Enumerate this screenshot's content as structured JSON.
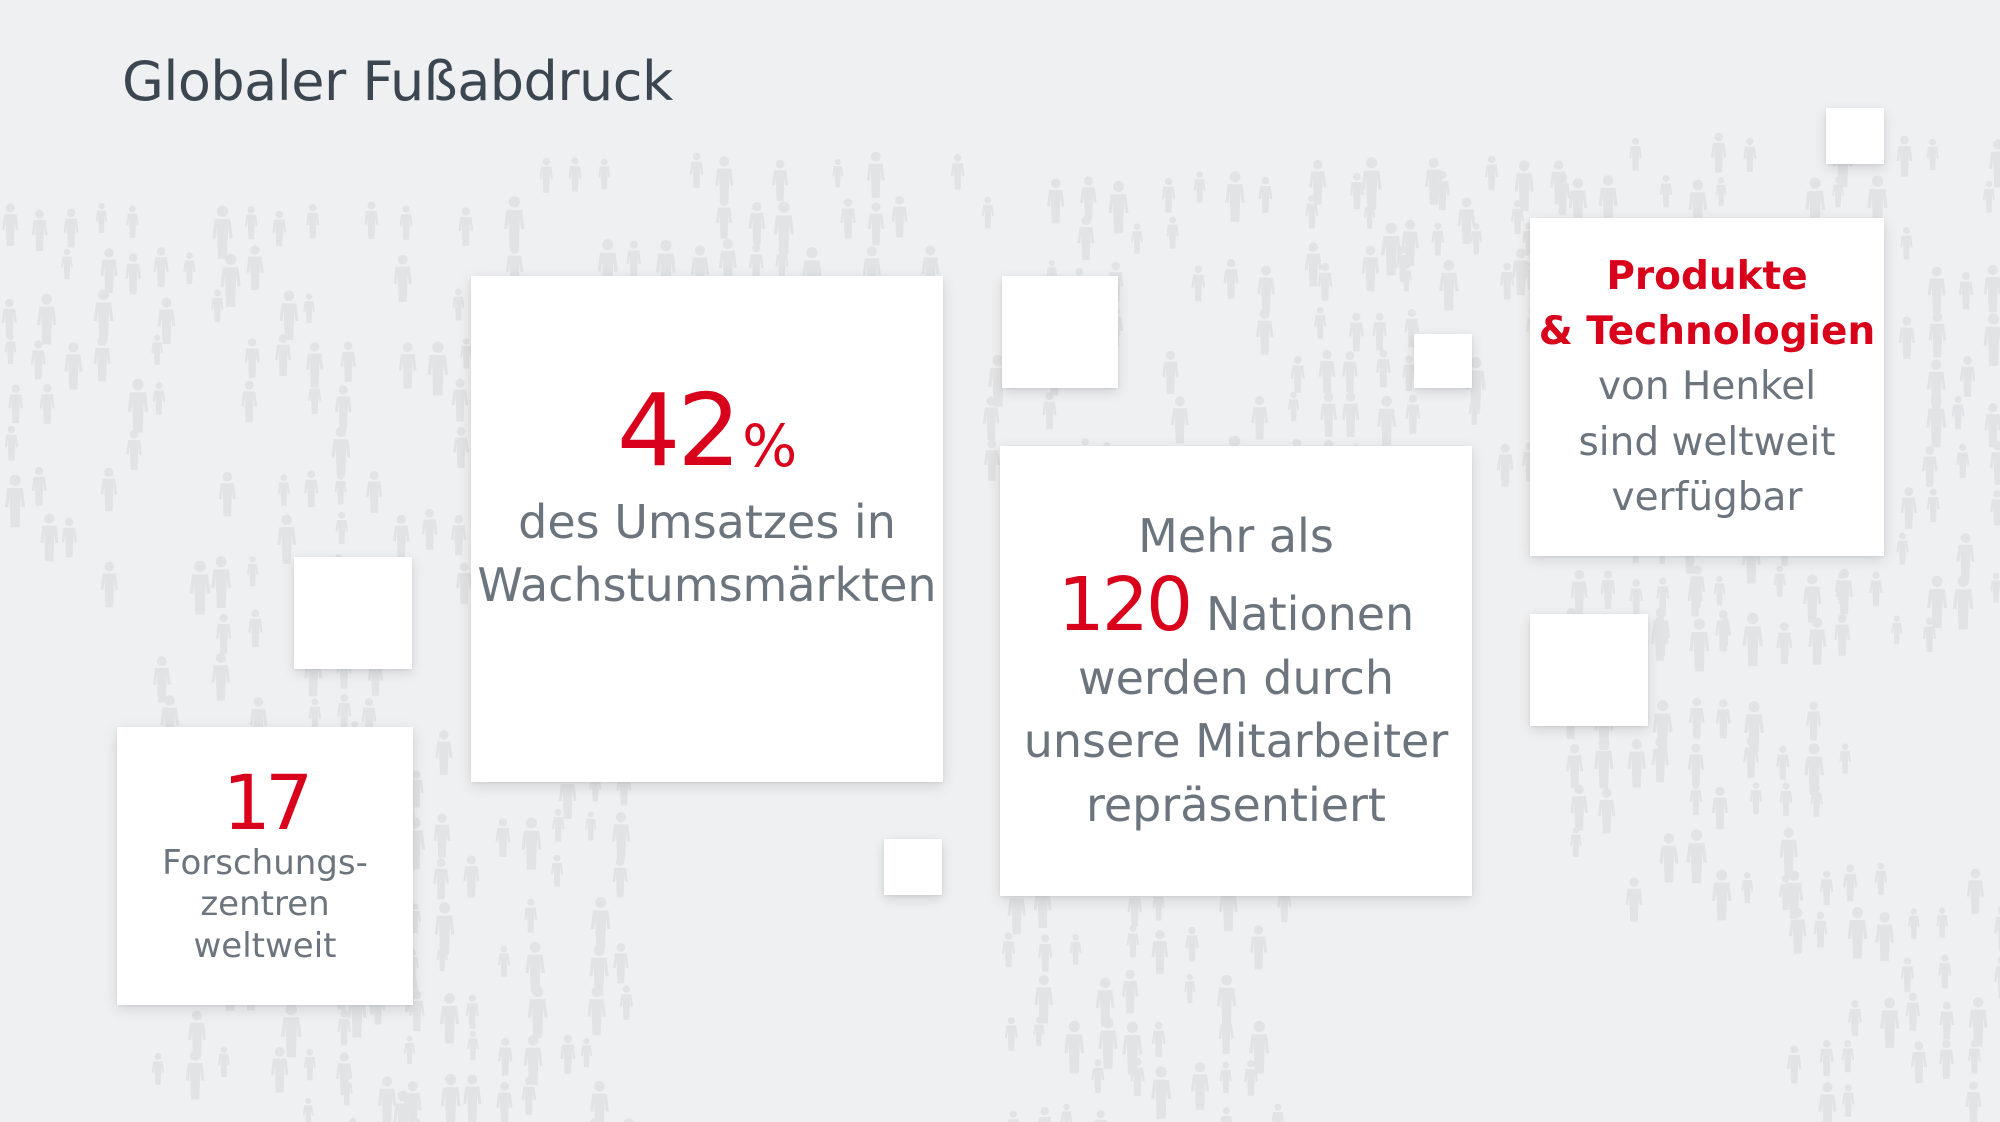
{
  "slide": {
    "title": "Globaler Fußabdruck"
  },
  "colors": {
    "accent": "#d9001b",
    "text": "#6c757d",
    "title": "#3c4650",
    "background": "#eff0f2",
    "card": "#ffffff"
  },
  "stat_revenue": {
    "number": "42",
    "unit": "%",
    "line1": "des Umsatzes in",
    "line2": "Wachstumsmärkten"
  },
  "stat_nations": {
    "line1": "Mehr als",
    "number": "120",
    "number_suffix": "Nationen",
    "line3": "werden durch",
    "line4": "unsere Mitarbeiter",
    "line5": "repräsentiert"
  },
  "stat_products": {
    "highlight1": "Produkte",
    "highlight2": "& Technologien",
    "line3": "von Henkel",
    "line4": "sind weltweit",
    "line5": "verfügbar"
  },
  "stat_research": {
    "number": "17",
    "line1": "Forschungs-",
    "line2": "zentren",
    "line3": "weltweit"
  },
  "background_icon": "people-world-map"
}
